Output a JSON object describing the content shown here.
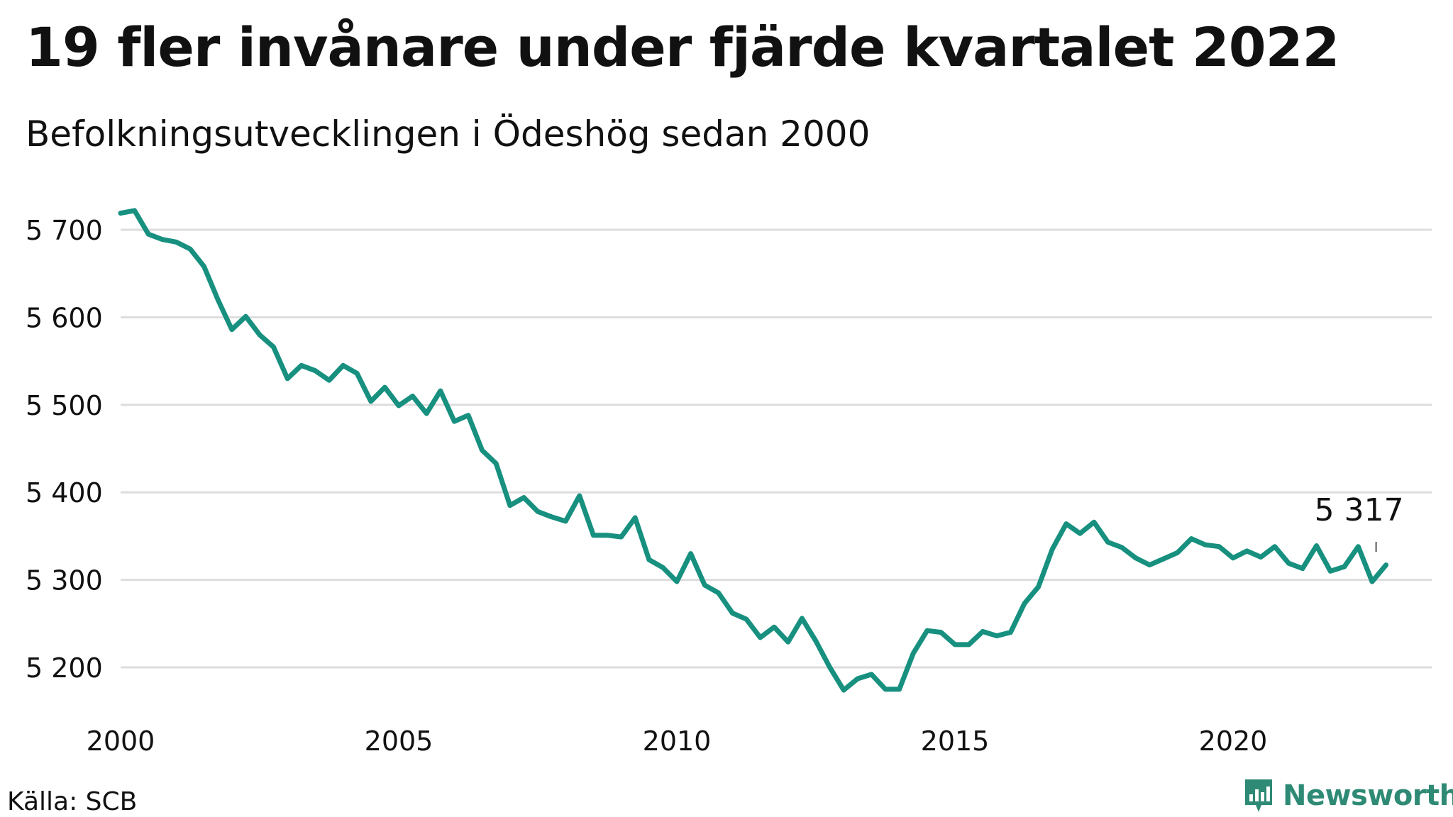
{
  "header": {
    "title": "19 fler invånare under fjärde kvartalet 2022",
    "subtitle": "Befolkningsutvecklingen i Ödeshög sedan 2000"
  },
  "footer": {
    "source": "Källa: SCB",
    "brand": "Newsworthy"
  },
  "colors": {
    "line": "#17907f",
    "grid": "#dddddd",
    "brand": "#2e8a74"
  },
  "chart_data": {
    "type": "line",
    "title": "19 fler invånare under fjärde kvartalet 2022",
    "subtitle": "Befolkningsutvecklingen i Ödeshög sedan 2000",
    "x_start": 2000,
    "x_step": 0.25,
    "xlim": [
      2000,
      2023.75
    ],
    "ylim": [
      5150,
      5730
    ],
    "grid": true,
    "y_ticks": [
      5200,
      5300,
      5400,
      5500,
      5600,
      5700
    ],
    "y_tick_labels": [
      "5 200",
      "5 300",
      "5 400",
      "5 500",
      "5 600",
      "5 700"
    ],
    "x_ticks": [
      2000,
      2005,
      2010,
      2015,
      2020
    ],
    "x_tick_labels": [
      "2000",
      "2005",
      "2010",
      "2015",
      "2020"
    ],
    "values": [
      5719,
      5722,
      5695,
      5689,
      5686,
      5678,
      5658,
      5620,
      5586,
      5601,
      5580,
      5566,
      5530,
      5545,
      5539,
      5528,
      5545,
      5536,
      5504,
      5520,
      5499,
      5510,
      5490,
      5516,
      5481,
      5488,
      5448,
      5433,
      5385,
      5394,
      5378,
      5372,
      5367,
      5396,
      5351,
      5351,
      5349,
      5371,
      5323,
      5314,
      5298,
      5330,
      5294,
      5285,
      5262,
      5255,
      5234,
      5246,
      5229,
      5256,
      5230,
      5200,
      5174,
      5187,
      5192,
      5175,
      5175,
      5216,
      5242,
      5240,
      5226,
      5226,
      5241,
      5236,
      5240,
      5273,
      5292,
      5335,
      5364,
      5353,
      5366,
      5343,
      5337,
      5325,
      5317,
      5324,
      5331,
      5347,
      5340,
      5338,
      5325,
      5333,
      5326,
      5338,
      5319,
      5313,
      5339,
      5310,
      5315,
      5338,
      5298,
      5317
    ],
    "annotation": {
      "label": "5 317",
      "value": 5317
    }
  }
}
